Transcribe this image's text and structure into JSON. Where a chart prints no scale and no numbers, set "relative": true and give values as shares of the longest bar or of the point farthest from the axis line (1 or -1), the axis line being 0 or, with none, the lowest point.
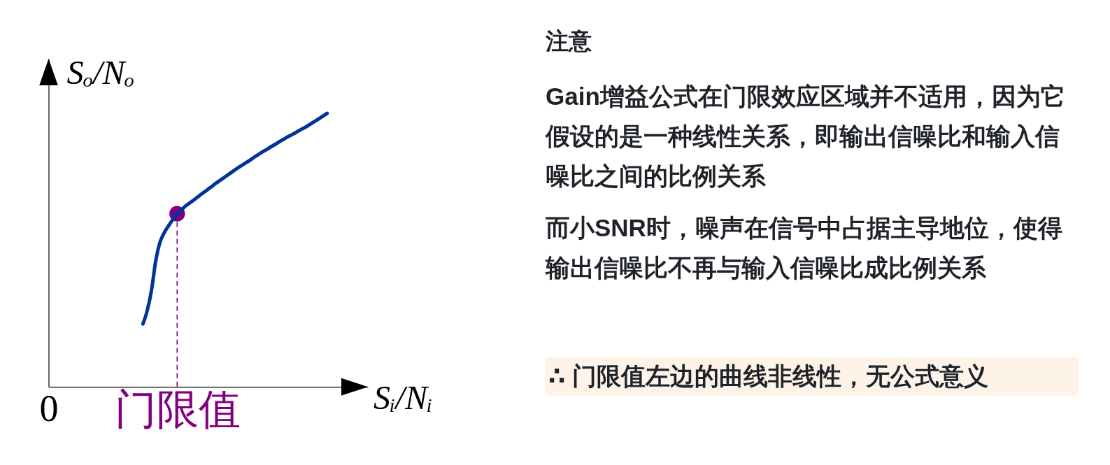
{
  "chart_data": [
    {
      "type": "line",
      "ylabel": "Sₒ/Nₒ",
      "xlabel": "Sᵢ/Nᵢ",
      "relative": true,
      "categories": [
        "0",
        null,
        null,
        null,
        null,
        null,
        null,
        null,
        null,
        null,
        null,
        null,
        null,
        null,
        null,
        null,
        null,
        null,
        null,
        null,
        null,
        null,
        null,
        null,
        null,
        null,
        null,
        null,
        null,
        null,
        "门限值",
        null,
        null,
        null,
        null,
        null,
        null,
        null,
        null,
        null,
        null,
        null,
        null,
        null,
        null,
        null,
        null,
        null,
        null,
        null,
        null,
        null,
        null,
        null,
        null,
        null,
        null,
        null,
        null,
        null,
        null,
        null,
        null,
        null,
        null,
        null
      ],
      "series": [
        {
          "type": "lollipop",
          "color": "#800080",
          "marker": "circle",
          "line_style": "dashed",
          "values": [
            null,
            null,
            null,
            null,
            null,
            null,
            null,
            null,
            null,
            null,
            null,
            null,
            null,
            null,
            null,
            null,
            null,
            null,
            null,
            null,
            null,
            null,
            null,
            null,
            null,
            null,
            null,
            null,
            null,
            null,
            0.633,
            null,
            null,
            null,
            null,
            null,
            null,
            null,
            null,
            null,
            null,
            null,
            null,
            null,
            null,
            null,
            null,
            null,
            null,
            null,
            null,
            null,
            null,
            null,
            null,
            null,
            null,
            null,
            null,
            null,
            null,
            null,
            null,
            null,
            null,
            null
          ]
        },
        {
          "type": "line",
          "color": "#003399",
          "values": [
            null,
            null,
            null,
            null,
            null,
            null,
            null,
            null,
            null,
            null,
            null,
            null,
            null,
            null,
            null,
            null,
            null,
            null,
            null,
            null,
            null,
            null,
            0.23,
            0.278,
            0.352,
            0.461,
            0.529,
            0.564,
            0.589,
            0.612,
            0.633,
            0.647,
            0.662,
            0.673,
            0.685,
            0.697,
            0.709,
            0.72,
            0.732,
            0.744,
            0.755,
            0.766,
            0.777,
            0.788,
            0.799,
            0.809,
            0.819,
            0.829,
            0.84,
            0.85,
            0.86,
            0.869,
            0.879,
            0.888,
            0.898,
            0.907,
            0.916,
            0.924,
            0.933,
            0.942,
            0.95,
            0.96,
            0.97,
            0.98,
            0.99,
            1
          ]
        }
      ]
    },
    {
      "type": "other",
      "title": "注意",
      "annotations": [
        "Gain增益公式在门限效应区域并不适用，因为它假设的是一种线性关系，即输出信噪比和输入信噪比之间的比例关系",
        "而小SNR时，噪声在信号中占据主导地位，使得输出信噪比不再与输入信噪比成比例关系",
        "∴ 门限值左边的曲线非线性，无公式意义"
      ]
    }
  ]
}
